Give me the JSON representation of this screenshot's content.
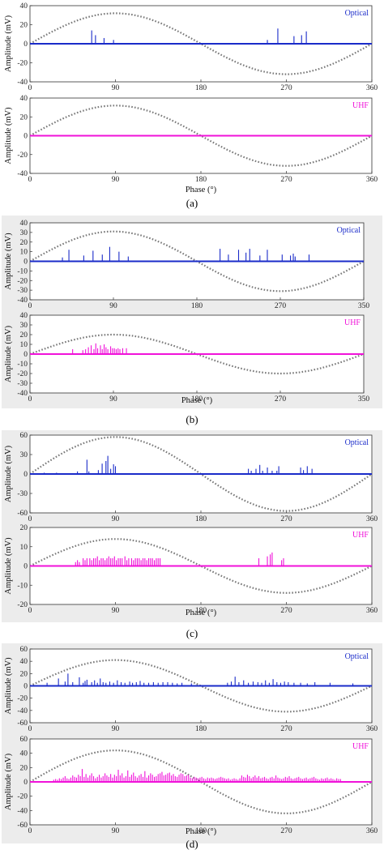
{
  "colors": {
    "optical": "#1a2bc9",
    "uhf": "#f012d9",
    "sine": "#7a7a7a",
    "panel_bg": "#ffffff",
    "group_bg": "#ececec"
  },
  "chart_data": [
    {
      "type": "bar",
      "caption": "(a)",
      "xticks": [
        "0",
        "90",
        "180",
        "270",
        "360"
      ],
      "xlim": [
        0,
        360
      ],
      "xlabel": "Phase (°)",
      "panels": [
        {
          "legend": "Optical",
          "ylabel": "Amplitude (mV)",
          "ylim": [
            -40,
            40
          ],
          "yticks": [
            "40",
            "20",
            "0",
            "-20",
            "-40"
          ],
          "sine_amplitude": 32,
          "series": [
            {
              "name": "Optical",
              "x": [
                65,
                69,
                78,
                88,
                250,
                261,
                278,
                286,
                291
              ],
              "values": [
                14,
                9,
                6,
                4,
                4,
                16,
                8,
                9,
                13
              ]
            }
          ]
        },
        {
          "legend": "UHF",
          "ylabel": "Amplitude (mV)",
          "ylim": [
            -40,
            40
          ],
          "yticks": [
            "40",
            "20",
            "0",
            "-20",
            "-40"
          ],
          "sine_amplitude": 32,
          "series": [
            {
              "name": "UHF",
              "x": [],
              "values": []
            }
          ]
        }
      ]
    },
    {
      "type": "bar",
      "caption": "(b)",
      "xticks": [
        "0",
        "90",
        "180",
        "270",
        "350"
      ],
      "xlim": [
        0,
        360
      ],
      "xlabel": "Phase (°)",
      "panels": [
        {
          "legend": "Optical",
          "ylabel": "Amplitude (mV)",
          "ylim": [
            -40,
            40
          ],
          "yticks": [
            "40",
            "30",
            "20",
            "10",
            "0",
            "-10",
            "-20",
            "-30",
            "-40"
          ],
          "sine_amplitude": 31,
          "series": [
            {
              "name": "Optical",
              "x": [
                35,
                42,
                58,
                68,
                78,
                86,
                96,
                106,
                205,
                214,
                225,
                233,
                237,
                248,
                256,
                272,
                281,
                284,
                286,
                301
              ],
              "values": [
                4,
                12,
                6,
                11,
                7,
                15,
                10,
                5,
                13,
                7,
                12,
                9,
                13,
                6,
                12,
                7,
                6,
                8,
                5,
                7
              ]
            }
          ]
        },
        {
          "legend": "UHF",
          "ylabel": "Amplitude (mV)",
          "ylim": [
            -40,
            40
          ],
          "yticks": [
            "40",
            "30",
            "20",
            "10",
            "0",
            "-10",
            "-20",
            "-30",
            "-40"
          ],
          "sine_amplitude": 20,
          "series": [
            {
              "name": "UHF",
              "x": [
                46,
                57,
                60,
                63,
                66,
                69,
                71,
                73,
                76,
                78,
                80,
                82,
                84,
                87,
                89,
                91,
                93,
                95,
                97,
                100,
                104
              ],
              "values": [
                5,
                4,
                5,
                7,
                9,
                5,
                11,
                6,
                9,
                5,
                10,
                7,
                5,
                8,
                6,
                6,
                5,
                6,
                5,
                6,
                6
              ]
            }
          ]
        }
      ]
    },
    {
      "type": "bar",
      "caption": "(c)",
      "xticks": [
        "0",
        "90",
        "180",
        "270",
        "360"
      ],
      "xlim": [
        0,
        360
      ],
      "xlabel": "Phase (°)",
      "panels": [
        {
          "legend": "Optical",
          "ylabel": "Amplitude (mV)",
          "ylim": [
            -60,
            60
          ],
          "yticks": [
            "60",
            "30",
            "0",
            "-30",
            "-60"
          ],
          "sine_amplitude": 57,
          "series": [
            {
              "name": "Optical",
              "x": [
                15,
                28,
                50,
                60,
                62,
                72,
                76,
                80,
                82,
                85,
                88,
                90,
                230,
                233,
                238,
                242,
                245,
                250,
                255,
                260,
                262,
                285,
                288,
                292,
                297
              ],
              "values": [
                2,
                2,
                4,
                22,
                4,
                6,
                16,
                20,
                28,
                8,
                15,
                12,
                8,
                5,
                8,
                14,
                5,
                10,
                5,
                5,
                12,
                10,
                6,
                12,
                8
              ]
            }
          ]
        },
        {
          "legend": "UHF",
          "ylabel": "Amplitude (mV)",
          "ylim": [
            -20,
            20
          ],
          "yticks": [
            "20",
            "10",
            "0",
            "-10",
            "-20"
          ],
          "sine_amplitude": 14,
          "series": [
            {
              "name": "UHF",
              "x": [
                48,
                50,
                52,
                56,
                58,
                60,
                63,
                65,
                67,
                69,
                71,
                73,
                75,
                77,
                79,
                81,
                83,
                85,
                87,
                89,
                91,
                93,
                95,
                97,
                100,
                102,
                104,
                107,
                109,
                111,
                113,
                115,
                117,
                119,
                121,
                123,
                125,
                127,
                129,
                131,
                133,
                135,
                137,
                241,
                250,
                253,
                255,
                265,
                267
              ],
              "values": [
                2,
                3,
                2,
                4,
                3,
                4,
                4,
                3,
                4,
                4,
                5,
                3,
                4,
                4,
                3,
                4,
                5,
                4,
                4,
                5,
                3,
                4,
                4,
                4,
                5,
                3,
                4,
                4,
                3,
                4,
                4,
                4,
                3,
                4,
                4,
                3,
                4,
                4,
                4,
                3,
                4,
                4,
                4,
                4,
                5,
                6,
                7,
                3,
                4
              ]
            }
          ]
        }
      ]
    },
    {
      "type": "bar",
      "caption": "(d)",
      "xticks": [
        "0",
        "90",
        "180",
        "270",
        "360"
      ],
      "xlim": [
        0,
        360
      ],
      "xlabel": "Phase (°)",
      "panels": [
        {
          "legend": "Optical",
          "ylabel": "Amplitude (mV)",
          "ylim": [
            -60,
            60
          ],
          "yticks": [
            "60",
            "40",
            "20",
            "0",
            "-20",
            "-40",
            "-60"
          ],
          "sine_amplitude": 42,
          "series": [
            {
              "name": "Optical",
              "x": [
                18,
                30,
                37,
                40,
                45,
                52,
                56,
                58,
                60,
                65,
                68,
                71,
                74,
                77,
                80,
                84,
                88,
                92,
                96,
                100,
                105,
                108,
                112,
                116,
                120,
                125,
                130,
                135,
                140,
                145,
                150,
                155,
                160,
                170,
                208,
                212,
                216,
                220,
                225,
                230,
                235,
                240,
                244,
                248,
                252,
                256,
                260,
                264,
                268,
                272,
                278,
                285,
                292,
                300,
                316,
                340
              ],
              "values": [
                5,
                12,
                7,
                20,
                6,
                14,
                5,
                8,
                10,
                6,
                9,
                5,
                12,
                6,
                5,
                7,
                5,
                9,
                6,
                5,
                7,
                5,
                6,
                8,
                5,
                5,
                6,
                5,
                6,
                6,
                5,
                4,
                5,
                4,
                5,
                7,
                15,
                6,
                9,
                5,
                7,
                6,
                5,
                9,
                5,
                11,
                6,
                5,
                7,
                6,
                5,
                5,
                4,
                6,
                5,
                4
              ]
            }
          ]
        },
        {
          "legend": "UHF",
          "ylabel": "Amplitude (mV)",
          "ylim": [
            -60,
            60
          ],
          "yticks": [
            "60",
            "40",
            "20",
            "0",
            "-20",
            "-40",
            "-60"
          ],
          "sine_amplitude": 44,
          "series": [
            {
              "name": "UHF",
              "x": [
                25,
                27,
                29,
                31,
                33,
                35,
                37,
                39,
                41,
                43,
                45,
                47,
                49,
                51,
                53,
                55,
                57,
                59,
                61,
                63,
                65,
                67,
                69,
                71,
                73,
                75,
                77,
                79,
                81,
                83,
                85,
                87,
                89,
                91,
                93,
                95,
                97,
                99,
                101,
                103,
                105,
                107,
                109,
                111,
                113,
                115,
                117,
                119,
                121,
                123,
                125,
                127,
                129,
                131,
                133,
                135,
                137,
                139,
                141,
                143,
                145,
                147,
                149,
                151,
                153,
                155,
                157,
                159,
                161,
                163,
                165,
                167,
                169,
                171,
                173,
                175,
                177,
                179,
                181,
                183,
                185,
                187,
                189,
                191,
                193,
                195,
                197,
                199,
                201,
                203,
                205,
                207,
                209,
                211,
                213,
                215,
                217,
                219,
                221,
                223,
                225,
                227,
                229,
                231,
                233,
                235,
                237,
                239,
                241,
                243,
                245,
                247,
                249,
                251,
                253,
                255,
                257,
                259,
                261,
                263,
                265,
                267,
                269,
                271,
                273,
                275,
                277,
                279,
                281,
                283,
                285,
                287,
                289,
                291,
                293,
                295,
                297,
                299,
                301,
                303,
                305,
                307,
                309,
                311,
                313,
                315,
                317,
                319,
                321,
                323,
                325,
                327
              ],
              "values": [
                3,
                4,
                3,
                5,
                4,
                6,
                8,
                5,
                4,
                6,
                9,
                7,
                6,
                10,
                8,
                18,
                7,
                11,
                6,
                9,
                12,
                8,
                5,
                7,
                10,
                6,
                8,
                12,
                9,
                7,
                11,
                6,
                10,
                8,
                17,
                9,
                12,
                6,
                8,
                16,
                7,
                10,
                13,
                8,
                6,
                9,
                11,
                7,
                15,
                6,
                9,
                12,
                10,
                7,
                8,
                11,
                12,
                14,
                9,
                10,
                12,
                13,
                9,
                11,
                8,
                7,
                10,
                12,
                11,
                8,
                9,
                10,
                6,
                5,
                7,
                6,
                5,
                6,
                7,
                5,
                4,
                6,
                5,
                6,
                5,
                4,
                5,
                6,
                7,
                6,
                5,
                4,
                5,
                3,
                4,
                5,
                4,
                3,
                5,
                9,
                7,
                6,
                10,
                8,
                5,
                7,
                9,
                6,
                8,
                5,
                6,
                7,
                5,
                4,
                6,
                7,
                5,
                9,
                6,
                5,
                4,
                5,
                7,
                6,
                8,
                5,
                4,
                5,
                6,
                7,
                5,
                4,
                5,
                6,
                4,
                5,
                6,
                7,
                5,
                4,
                3,
                5,
                4,
                5,
                6,
                4,
                5,
                4,
                3,
                5,
                4,
                4
              ]
            }
          ]
        }
      ]
    }
  ]
}
